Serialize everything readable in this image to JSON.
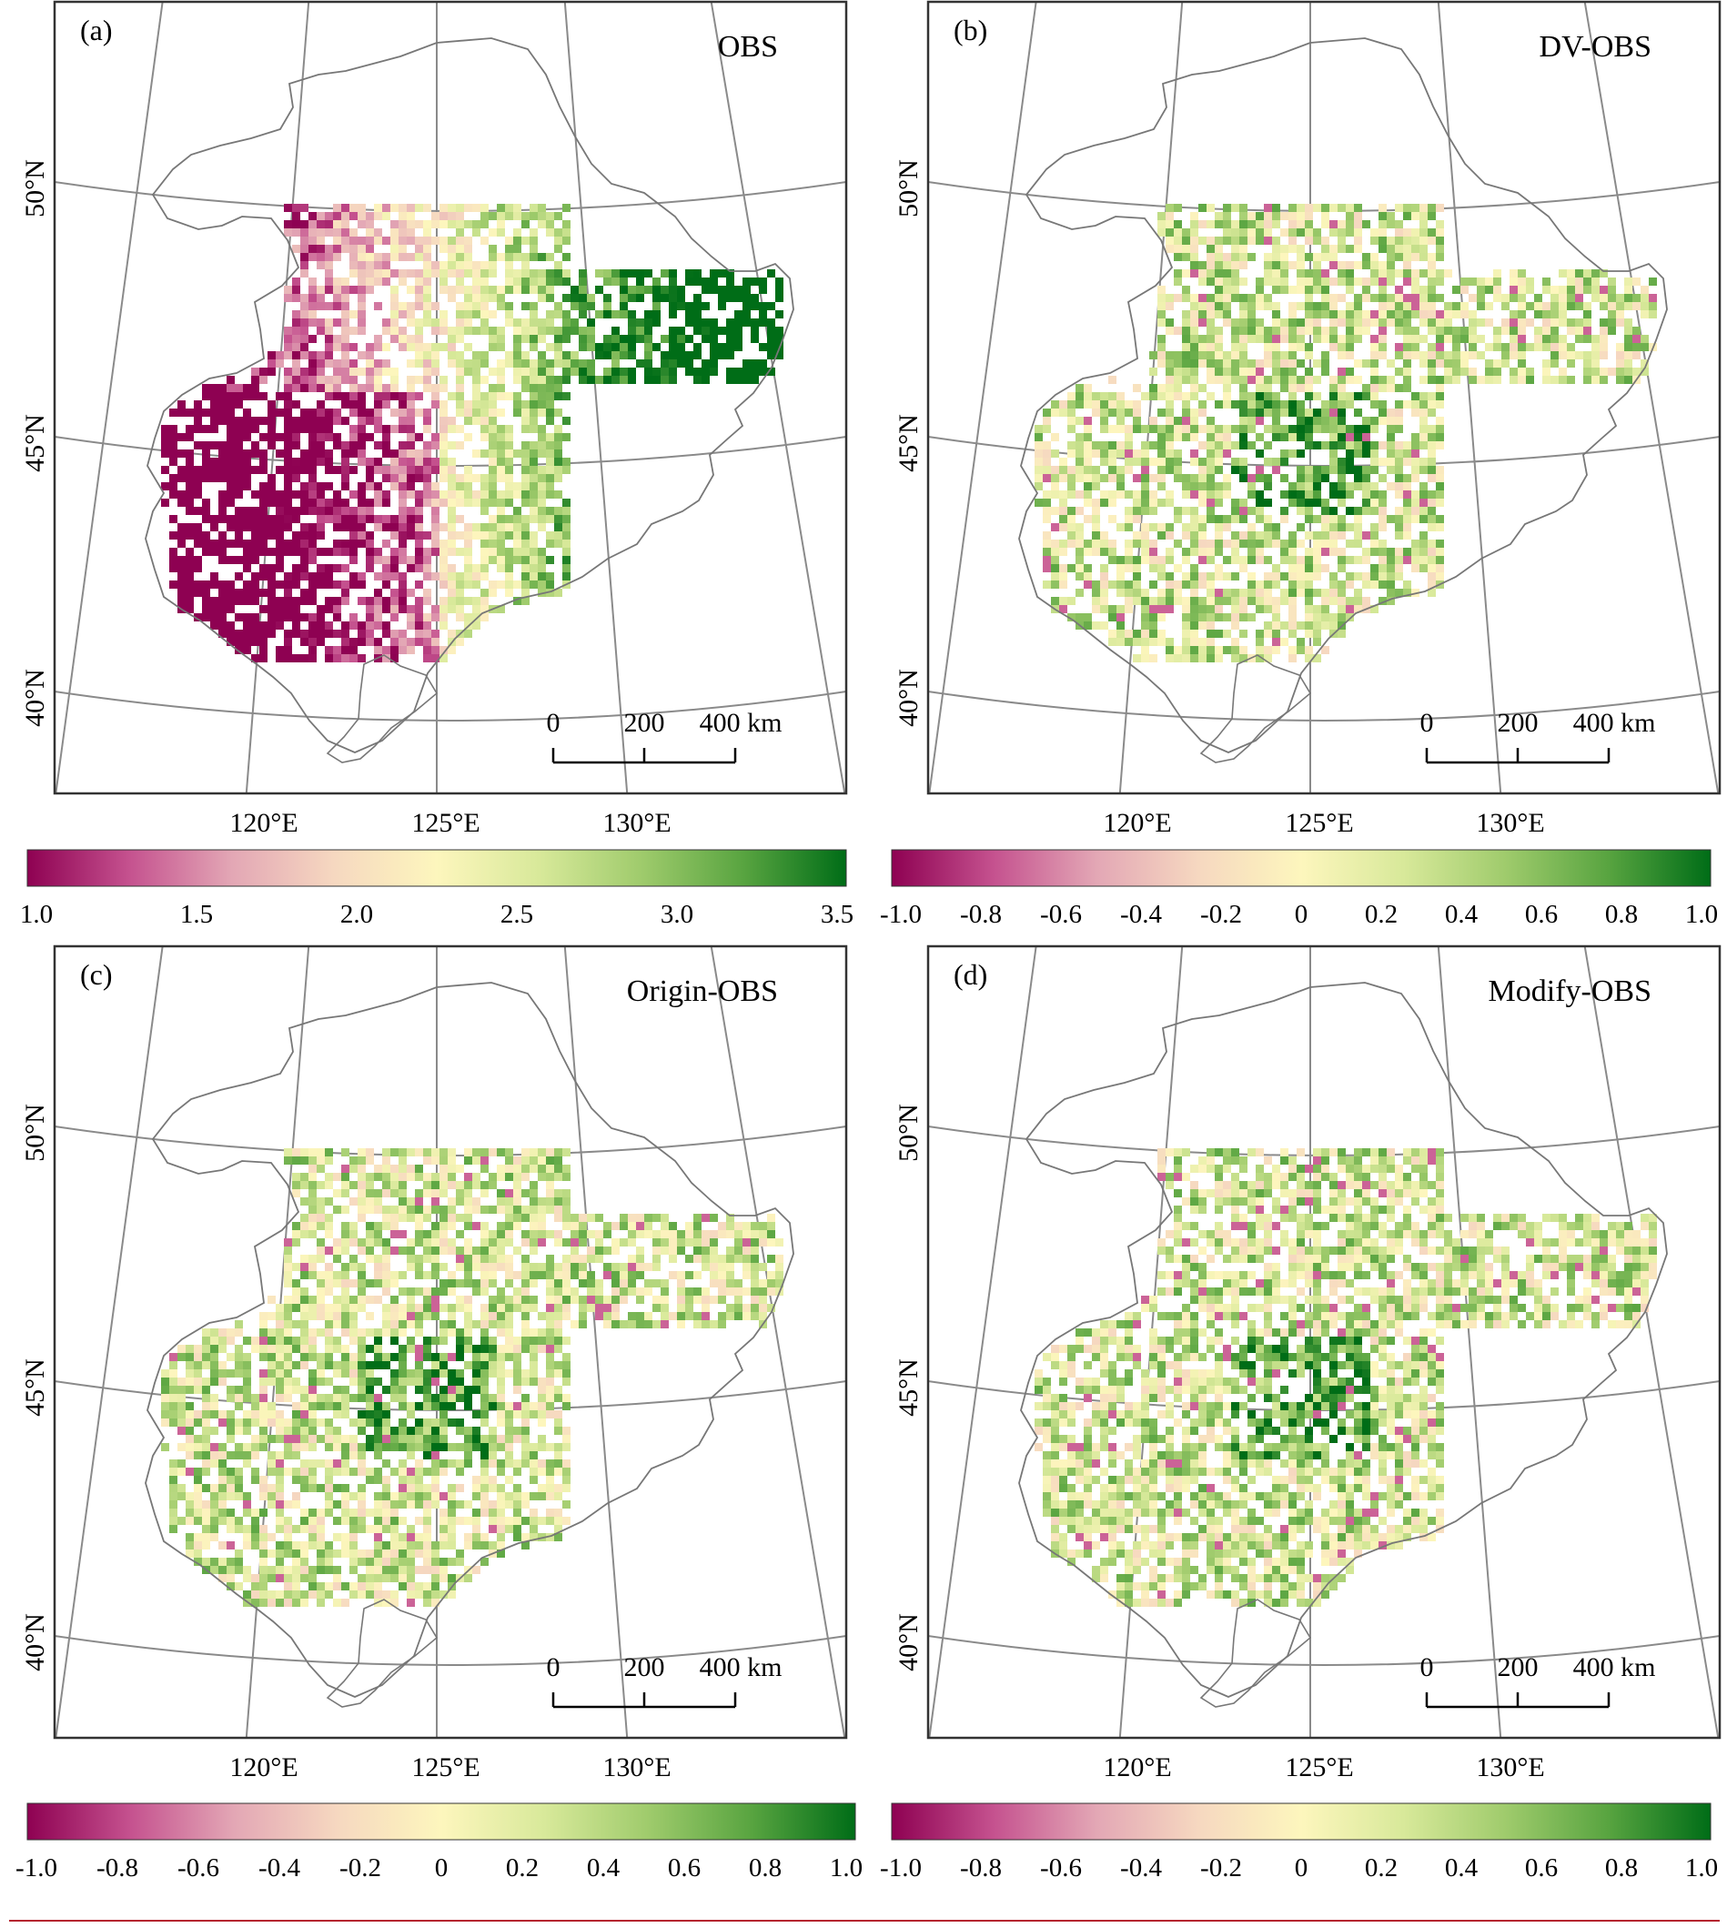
{
  "panels": [
    {
      "tag": "(a)",
      "title": "OBS",
      "scheme": "obs"
    },
    {
      "tag": "(b)",
      "title": "DV-OBS",
      "scheme": "diff"
    },
    {
      "tag": "(c)",
      "title": "Origin-OBS",
      "scheme": "diff"
    },
    {
      "tag": "(d)",
      "title": "Modify-OBS",
      "scheme": "diff"
    }
  ],
  "latitude_labels": [
    "50°N",
    "45°N",
    "40°N"
  ],
  "longitude_labels": [
    "120°E",
    "125°E",
    "130°E"
  ],
  "scale_bar": {
    "ticks": [
      "0",
      "200",
      "400 km"
    ]
  },
  "colorbars": [
    {
      "ticks": [
        "1.0",
        "1.5",
        "2.0",
        "2.5",
        "3.0",
        "3.5"
      ]
    },
    {
      "ticks": [
        "-1.0",
        "-0.8",
        "-0.6",
        "-0.4",
        "-0.2",
        "0",
        "0.2",
        "0.4",
        "0.6",
        "0.8",
        "1.0"
      ]
    },
    {
      "ticks": [
        "-1.0",
        "-0.8",
        "-0.6",
        "-0.4",
        "-0.2",
        "0",
        "0.2",
        "0.4",
        "0.6",
        "0.8",
        "1.0"
      ]
    },
    {
      "ticks": [
        "-1.0",
        "-0.8",
        "-0.6",
        "-0.4",
        "-0.2",
        "0",
        "0.2",
        "0.4",
        "0.6",
        "0.8",
        "1.0"
      ]
    }
  ],
  "colors": {
    "ramp": [
      "#8e0152",
      "#c5528f",
      "#e3a7b5",
      "#f6d8c0",
      "#fdf6bd",
      "#d8e99a",
      "#9fcb6c",
      "#58a440",
      "#006d17"
    ],
    "frame": "#333333",
    "graticule": "#8a8a8a",
    "boundary": "#777777",
    "rule": "#b5252f"
  }
}
